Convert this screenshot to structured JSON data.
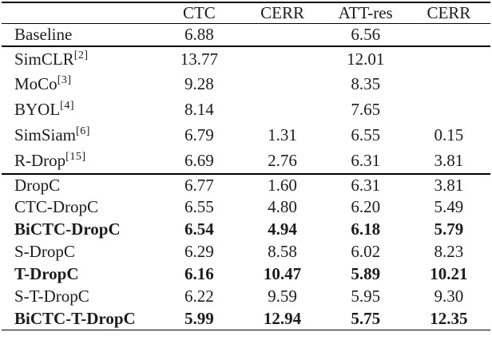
{
  "table": {
    "columns": [
      "",
      "CTC",
      "CERR",
      "ATT-res",
      "CERR"
    ],
    "rows": [
      {
        "label": "Baseline",
        "sup": "",
        "bold": false,
        "section": 0,
        "values": [
          "6.88",
          "",
          "6.56",
          ""
        ]
      },
      {
        "label": "SimCLR",
        "sup": "[2]",
        "bold": false,
        "section": 1,
        "values": [
          "13.77",
          "",
          "12.01",
          ""
        ]
      },
      {
        "label": "MoCo",
        "sup": "[3]",
        "bold": false,
        "section": 1,
        "values": [
          "9.28",
          "",
          "8.35",
          ""
        ]
      },
      {
        "label": "BYOL",
        "sup": "[4]",
        "bold": false,
        "section": 1,
        "values": [
          "8.14",
          "",
          "7.65",
          ""
        ]
      },
      {
        "label": "SimSiam",
        "sup": "[6]",
        "bold": false,
        "section": 1,
        "values": [
          "6.79",
          "1.31",
          "6.55",
          "0.15"
        ]
      },
      {
        "label": "R-Drop",
        "sup": "[15]",
        "bold": false,
        "section": 1,
        "values": [
          "6.69",
          "2.76",
          "6.31",
          "3.81"
        ]
      },
      {
        "label": "DropC",
        "sup": "",
        "bold": false,
        "section": 2,
        "values": [
          "6.77",
          "1.60",
          "6.31",
          "3.81"
        ]
      },
      {
        "label": "CTC-DropC",
        "sup": "",
        "bold": false,
        "section": 2,
        "values": [
          "6.55",
          "4.80",
          "6.20",
          "5.49"
        ]
      },
      {
        "label": "BiCTC-DropC",
        "sup": "",
        "bold": true,
        "section": 2,
        "values": [
          "6.54",
          "4.94",
          "6.18",
          "5.79"
        ]
      },
      {
        "label": "S-DropC",
        "sup": "",
        "bold": false,
        "section": 2,
        "values": [
          "6.29",
          "8.58",
          "6.02",
          "8.23"
        ]
      },
      {
        "label": "T-DropC",
        "sup": "",
        "bold": true,
        "section": 2,
        "values": [
          "6.16",
          "10.47",
          "5.89",
          "10.21"
        ]
      },
      {
        "label": "S-T-DropC",
        "sup": "",
        "bold": false,
        "section": 2,
        "values": [
          "6.22",
          "9.59",
          "5.95",
          "9.30"
        ]
      },
      {
        "label": "BiCTC-T-DropC",
        "sup": "",
        "bold": true,
        "section": 2,
        "values": [
          "5.99",
          "12.94",
          "5.75",
          "12.35"
        ]
      }
    ]
  },
  "colors": {
    "text": "#1c1c1c",
    "rule": "#000000",
    "background": "#ffffff"
  }
}
